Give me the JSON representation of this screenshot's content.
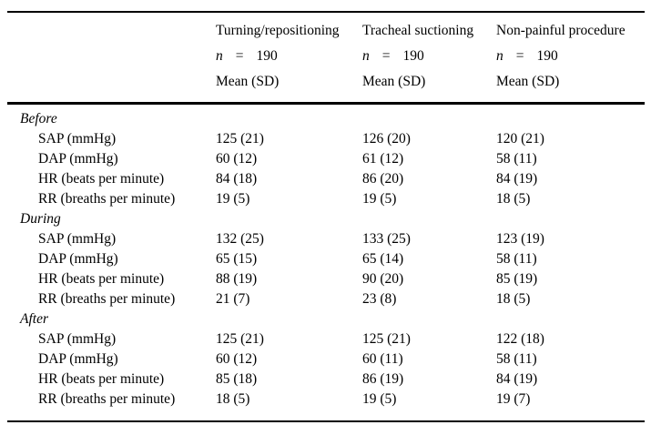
{
  "table": {
    "columns": [
      {
        "label": "Turning/repositioning"
      },
      {
        "label": "Tracheal suctioning"
      },
      {
        "label": "Non-painful procedure"
      }
    ],
    "n": {
      "sym": "n",
      "eq": "=",
      "value": "190"
    },
    "mean_label": "Mean (SD)",
    "sections": [
      {
        "label": "Before",
        "rows": [
          {
            "label": "SAP (mmHg)",
            "values": [
              "125 (21)",
              "126 (20)",
              "120 (21)"
            ]
          },
          {
            "label": "DAP (mmHg)",
            "values": [
              "60 (12)",
              "61 (12)",
              "58 (11)"
            ]
          },
          {
            "label": "HR (beats per minute)",
            "values": [
              "84 (18)",
              "86 (20)",
              "84 (19)"
            ]
          },
          {
            "label": "RR (breaths per minute)",
            "values": [
              "19 (5)",
              "19 (5)",
              "18 (5)"
            ]
          }
        ]
      },
      {
        "label": "During",
        "rows": [
          {
            "label": "SAP (mmHg)",
            "values": [
              "132 (25)",
              "133 (25)",
              "123 (19)"
            ]
          },
          {
            "label": "DAP (mmHg)",
            "values": [
              "65 (15)",
              "65 (14)",
              "58 (11)"
            ]
          },
          {
            "label": "HR (beats per minute)",
            "values": [
              "88 (19)",
              "90 (20)",
              "85 (19)"
            ]
          },
          {
            "label": "RR (breaths per minute)",
            "values": [
              "21 (7)",
              "23 (8)",
              "18 (5)"
            ]
          }
        ]
      },
      {
        "label": "After",
        "rows": [
          {
            "label": "SAP (mmHg)",
            "values": [
              "125 (21)",
              "125 (21)",
              "122 (18)"
            ]
          },
          {
            "label": "DAP (mmHg)",
            "values": [
              "60 (12)",
              "60 (11)",
              "58 (11)"
            ]
          },
          {
            "label": "HR (beats per minute)",
            "values": [
              "85 (18)",
              "86 (19)",
              "84 (19)"
            ]
          },
          {
            "label": "RR (breaths per minute)",
            "values": [
              "18 (5)",
              "19 (5)",
              "19 (7)"
            ]
          }
        ]
      }
    ],
    "colors": {
      "text": "#000000",
      "background": "#ffffff",
      "rule": "#000000"
    }
  }
}
